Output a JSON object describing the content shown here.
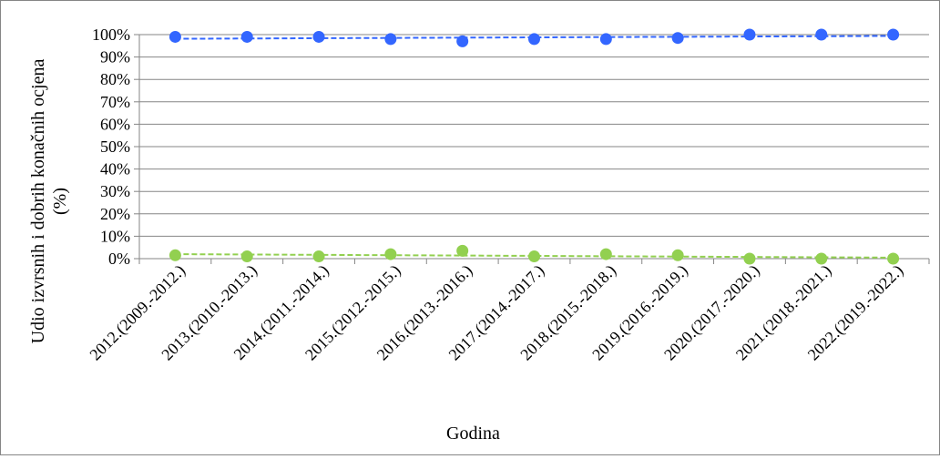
{
  "chart_data": {
    "type": "scatter",
    "title": "",
    "xlabel": "Godina",
    "ylabel": [
      "Udio izvrsnih i dobrih konačnih ocjena",
      "(%)"
    ],
    "categories": [
      "2012.(2009.-2012.)",
      "2013.(2010.-2013.)",
      "2014.(2011.-2014.)",
      "2015.(2012.-2015.)",
      "2016.(2013.-2016.)",
      "2017.(2014.-2017.)",
      "2018.(2015.-2018.)",
      "2019.(2016.-2019.)",
      "2020.(2017.-2020.)",
      "2021.(2018.-2021.)",
      "2022.(2019.-2022.)"
    ],
    "y_ticks": [
      "0%",
      "10%",
      "20%",
      "30%",
      "40%",
      "50%",
      "60%",
      "70%",
      "80%",
      "90%",
      "100%"
    ],
    "ylim": [
      0,
      100
    ],
    "grid": true,
    "legend": "none",
    "trendline": "linear, dashed",
    "series": [
      {
        "color": "#3366ff",
        "values": [
          99,
          99,
          99,
          98,
          97,
          98,
          98,
          98.5,
          100,
          100,
          100
        ]
      },
      {
        "color": "#92d050",
        "values": [
          1.5,
          1,
          1,
          2,
          3.5,
          1,
          2,
          1.5,
          0,
          0,
          0
        ]
      }
    ]
  }
}
